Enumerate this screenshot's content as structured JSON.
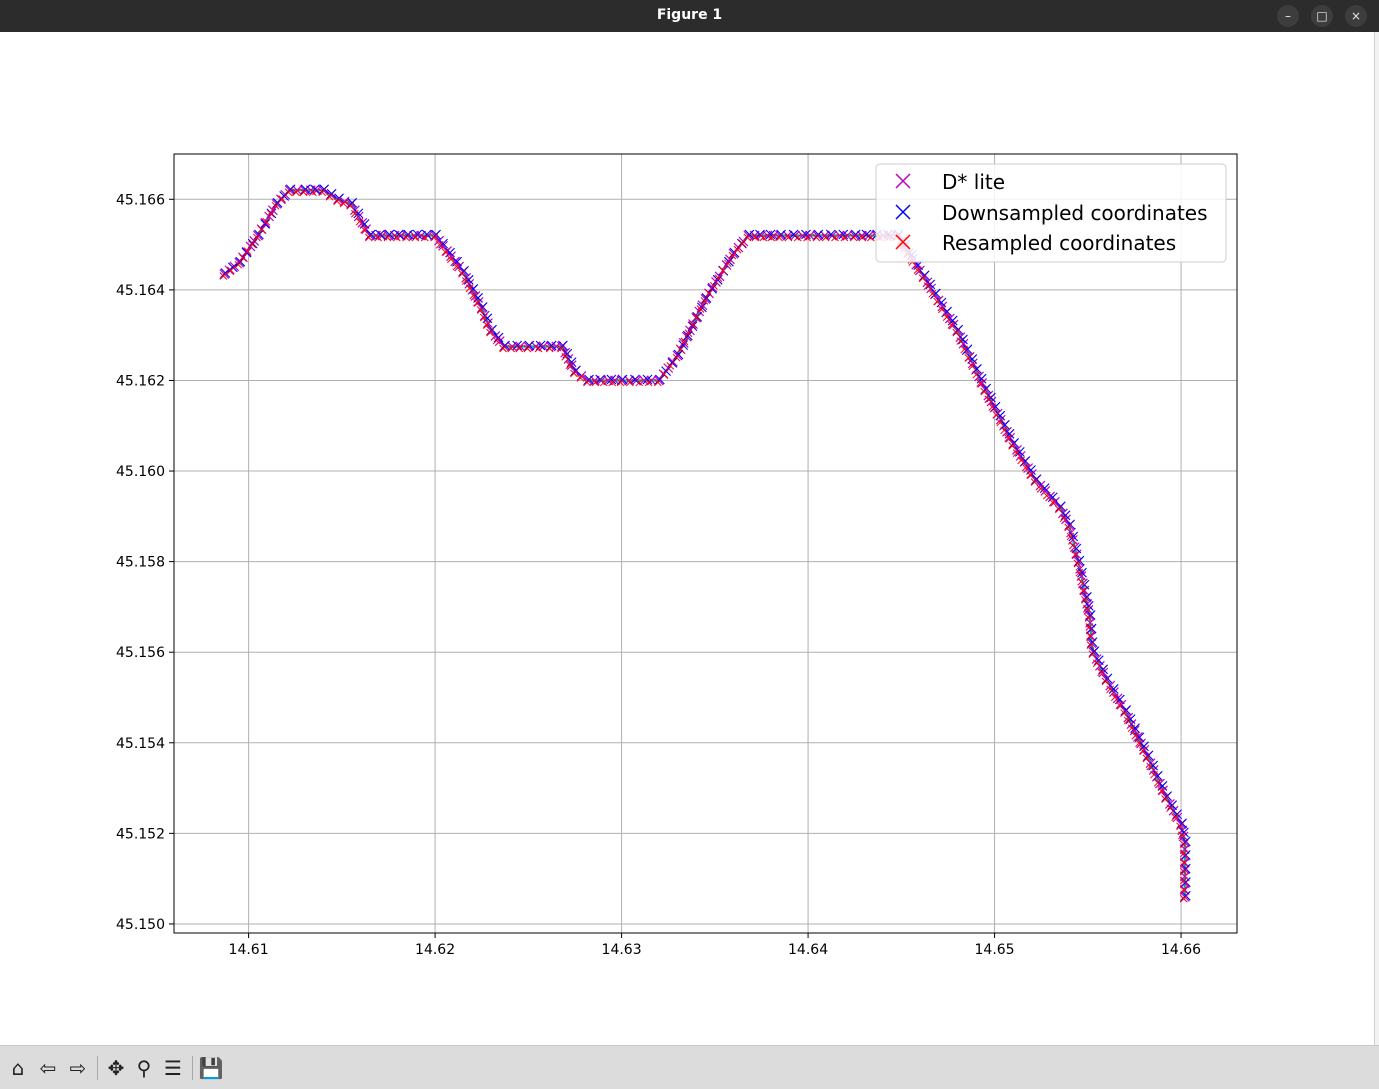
{
  "window": {
    "title": "Figure 1",
    "controls": [
      "–",
      "□",
      "×"
    ]
  },
  "toolbar": {
    "buttons": [
      {
        "name": "home-icon",
        "glyph": "⌂"
      },
      {
        "name": "back-icon",
        "glyph": "⇦"
      },
      {
        "name": "forward-icon",
        "glyph": "⇨"
      },
      {
        "name": "pan-icon",
        "glyph": "✥"
      },
      {
        "name": "zoom-icon",
        "glyph": "⚲"
      },
      {
        "name": "configure-subplots-icon",
        "glyph": "☰"
      },
      {
        "name": "save-icon",
        "glyph": "💾"
      }
    ]
  },
  "colors": {
    "dstar": "#c000c0",
    "downsampled": "#0000ff",
    "resampled": "#ff0000",
    "smooth": "#00b0b0",
    "grid": "#b0b0b0"
  },
  "chart_data": {
    "type": "line",
    "title": "",
    "xlabel": "",
    "ylabel": "",
    "xlim": [
      14.606,
      14.663
    ],
    "ylim": [
      45.1498,
      45.167
    ],
    "grid": true,
    "legend_position": "upper right",
    "x_ticks": [
      "14.61",
      "14.62",
      "14.63",
      "14.64",
      "14.65",
      "14.66"
    ],
    "y_ticks": [
      "45.150",
      "45.152",
      "45.154",
      "45.156",
      "45.158",
      "45.160",
      "45.162",
      "45.164",
      "45.166"
    ],
    "legend": [
      "D* lite",
      "Downsampled coordinates",
      "Resampled coordinates"
    ],
    "path": [
      [
        14.6087,
        45.16435
      ],
      [
        14.6095,
        45.1646
      ],
      [
        14.6105,
        45.1652
      ],
      [
        14.6115,
        45.1659
      ],
      [
        14.6122,
        45.1662
      ],
      [
        14.613,
        45.1662
      ],
      [
        14.614,
        45.1662
      ],
      [
        14.6148,
        45.166
      ],
      [
        14.6155,
        45.1659
      ],
      [
        14.6165,
        45.1652
      ],
      [
        14.6175,
        45.1652
      ],
      [
        14.6185,
        45.1652
      ],
      [
        14.62,
        45.1652
      ],
      [
        14.6215,
        45.1644
      ],
      [
        14.6225,
        45.1636
      ],
      [
        14.623,
        45.1631
      ],
      [
        14.6237,
        45.16275
      ],
      [
        14.625,
        45.16275
      ],
      [
        14.6262,
        45.16275
      ],
      [
        14.6268,
        45.16275
      ],
      [
        14.6275,
        45.1622
      ],
      [
        14.6282,
        45.162
      ],
      [
        14.63,
        45.162
      ],
      [
        14.632,
        45.162
      ],
      [
        14.633,
        45.16255
      ],
      [
        14.6345,
        45.1638
      ],
      [
        14.636,
        45.1648
      ],
      [
        14.6368,
        45.1652
      ],
      [
        14.6385,
        45.1652
      ],
      [
        14.6405,
        45.1652
      ],
      [
        14.6425,
        45.1652
      ],
      [
        14.6448,
        45.1652
      ],
      [
        14.6462,
        45.1643
      ],
      [
        14.648,
        45.1631
      ],
      [
        14.6495,
        45.1618
      ],
      [
        14.651,
        45.1606
      ],
      [
        14.6522,
        45.1598
      ],
      [
        14.6535,
        45.1592
      ],
      [
        14.654,
        45.1588
      ],
      [
        14.6545,
        45.158
      ],
      [
        14.6549,
        45.1572
      ],
      [
        14.6551,
        45.1568
      ],
      [
        14.6552,
        45.1562
      ],
      [
        14.6553,
        45.156
      ],
      [
        14.656,
        45.1554
      ],
      [
        14.657,
        45.1547
      ],
      [
        14.6582,
        45.1537
      ],
      [
        14.6592,
        45.1528
      ],
      [
        14.66,
        45.1522
      ],
      [
        14.6602,
        45.1518
      ],
      [
        14.6602,
        45.1512
      ],
      [
        14.6602,
        45.1506
      ]
    ]
  }
}
